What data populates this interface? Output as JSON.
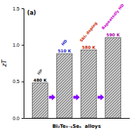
{
  "chart_data": {
    "type": "bar",
    "title": "(a)",
    "categories": [
      null,
      null,
      null,
      null
    ],
    "values": [
      0.48,
      0.88,
      0.93,
      1.1
    ],
    "color": "#c8c8c8",
    "ylim": [
      0,
      1.5
    ],
    "yticks": [
      {
        "value": 0,
        "label": "0.0"
      },
      0.5,
      {
        "value": 1,
        "label": "1.0"
      },
      1.5
    ],
    "ylabel": "zT",
    "xlabel": "Bi₂Te₃₋ₓSeₓ  alloys",
    "tick_labels": "y",
    "grid": false,
    "annotations": [
      {
        "text": "480 K",
        "color": "#000000",
        "bar": 0
      },
      {
        "text": "510 K",
        "color": "#2222cc",
        "bar": 1
      },
      {
        "text": "580 K",
        "color": "#cc2200",
        "bar": 2
      },
      {
        "text": "590 K",
        "color": "#aa00aa",
        "bar": 3
      },
      {
        "text": "HP",
        "color": "#555555",
        "bar": 0
      },
      {
        "text": "HD",
        "color": "#2222cc",
        "bar": 1
      },
      {
        "text": "SbI₃ doping",
        "color": "#cc2200",
        "bar": 2
      },
      {
        "text": "Repeatedly HD",
        "color": "#cc00cc",
        "bar": 3
      }
    ]
  }
}
